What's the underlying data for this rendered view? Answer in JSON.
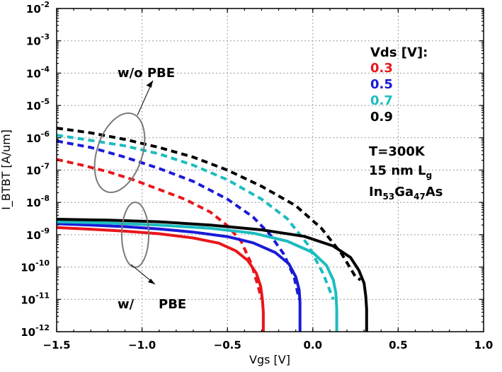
{
  "chart_data": {
    "type": "line",
    "xlabel": "Vgs [V]",
    "ylabel": "I_BTBT [A/um]",
    "xlim": [
      -1.5,
      1.0
    ],
    "ylim_exp": [
      -12,
      -2
    ],
    "yscale": "log",
    "grid": true,
    "x_ticks": [
      "−1.5",
      "−1.0",
      "−0.5",
      "0.0",
      "0.5",
      "1.0"
    ],
    "x_tick_values": [
      -1.5,
      -1.0,
      -0.5,
      0.0,
      0.5,
      1.0
    ],
    "y_tick_base": "10",
    "y_tick_exponents": [
      "-2",
      "-3",
      "-4",
      "-5",
      "-6",
      "-7",
      "-8",
      "-9",
      "-10",
      "-11",
      "-12"
    ],
    "legend_title": "Vds [V]:",
    "series": [
      {
        "name": "0.3",
        "color": "#e8161b",
        "wo_pbe": {
          "x": [
            -1.5,
            -1.35,
            -1.2,
            -1.05,
            -0.9,
            -0.75,
            -0.6,
            -0.5,
            -0.42,
            -0.36,
            -0.32,
            -0.3
          ],
          "y": [
            -6.67,
            -6.85,
            -7.05,
            -7.3,
            -7.6,
            -7.9,
            -8.3,
            -8.72,
            -9.2,
            -9.9,
            -10.6,
            -11.0
          ]
        },
        "w_pbe": {
          "x": [
            -1.5,
            -1.3,
            -1.1,
            -0.9,
            -0.7,
            -0.55,
            -0.45,
            -0.38,
            -0.33,
            -0.305,
            -0.295,
            -0.29,
            -0.29
          ],
          "y": [
            -8.78,
            -8.83,
            -8.89,
            -8.97,
            -9.1,
            -9.26,
            -9.5,
            -9.8,
            -10.2,
            -10.6,
            -11.0,
            -11.4,
            -12.0
          ]
        }
      },
      {
        "name": "0.5",
        "color": "#1a1ad8",
        "wo_pbe": {
          "x": [
            -1.5,
            -1.3,
            -1.1,
            -0.9,
            -0.7,
            -0.5,
            -0.35,
            -0.25,
            -0.17,
            -0.11,
            -0.08
          ],
          "y": [
            -6.1,
            -6.3,
            -6.6,
            -6.95,
            -7.35,
            -7.9,
            -8.45,
            -9.0,
            -9.6,
            -10.3,
            -11.0
          ]
        },
        "w_pbe": {
          "x": [
            -1.5,
            -1.3,
            -1.1,
            -0.9,
            -0.7,
            -0.5,
            -0.35,
            -0.22,
            -0.14,
            -0.1,
            -0.08,
            -0.075,
            -0.075
          ],
          "y": [
            -8.66,
            -8.7,
            -8.75,
            -8.82,
            -8.92,
            -9.06,
            -9.25,
            -9.55,
            -9.9,
            -10.3,
            -10.7,
            -11.1,
            -12.0
          ]
        }
      },
      {
        "name": "0.7",
        "color": "#1cbcbf",
        "wo_pbe": {
          "x": [
            -1.5,
            -1.3,
            -1.1,
            -0.9,
            -0.7,
            -0.5,
            -0.3,
            -0.15,
            -0.03,
            0.06,
            0.12
          ],
          "y": [
            -5.92,
            -6.08,
            -6.25,
            -6.5,
            -6.85,
            -7.3,
            -7.9,
            -8.5,
            -9.3,
            -10.2,
            -11.0
          ]
        },
        "w_pbe": {
          "x": [
            -1.5,
            -1.2,
            -0.9,
            -0.6,
            -0.35,
            -0.15,
            0.0,
            0.08,
            0.12,
            0.135,
            0.14,
            0.14
          ],
          "y": [
            -8.6,
            -8.64,
            -8.7,
            -8.8,
            -8.95,
            -9.2,
            -9.55,
            -9.95,
            -10.4,
            -10.8,
            -11.3,
            -12.0
          ]
        }
      },
      {
        "name": "0.9",
        "color": "#000000",
        "wo_pbe": {
          "x": [
            -1.5,
            -1.3,
            -1.1,
            -0.9,
            -0.7,
            -0.5,
            -0.3,
            -0.1,
            0.05,
            0.17,
            0.25,
            0.28
          ],
          "y": [
            -5.7,
            -5.85,
            -6.05,
            -6.3,
            -6.6,
            -7.0,
            -7.5,
            -8.1,
            -8.8,
            -9.6,
            -10.3,
            -10.4
          ]
        },
        "w_pbe": {
          "x": [
            -1.5,
            -1.2,
            -0.9,
            -0.6,
            -0.3,
            -0.05,
            0.12,
            0.22,
            0.27,
            0.3,
            0.31,
            0.315,
            0.315
          ],
          "y": [
            -8.52,
            -8.55,
            -8.6,
            -8.7,
            -8.85,
            -9.05,
            -9.35,
            -9.7,
            -10.1,
            -10.5,
            -10.9,
            -11.3,
            -12.0
          ]
        }
      }
    ],
    "annotations": {
      "wo_pbe": "w/o PBE",
      "w_pbe_prefix": "w/",
      "w_pbe_suffix": "PBE",
      "temperature": "T=300K",
      "gate_length_prefix": "15 nm L",
      "gate_length_sub": "g",
      "material_in": "In",
      "material_in_sub": "53",
      "material_ga": "Ga",
      "material_ga_sub": "47",
      "material_as": "As"
    }
  }
}
